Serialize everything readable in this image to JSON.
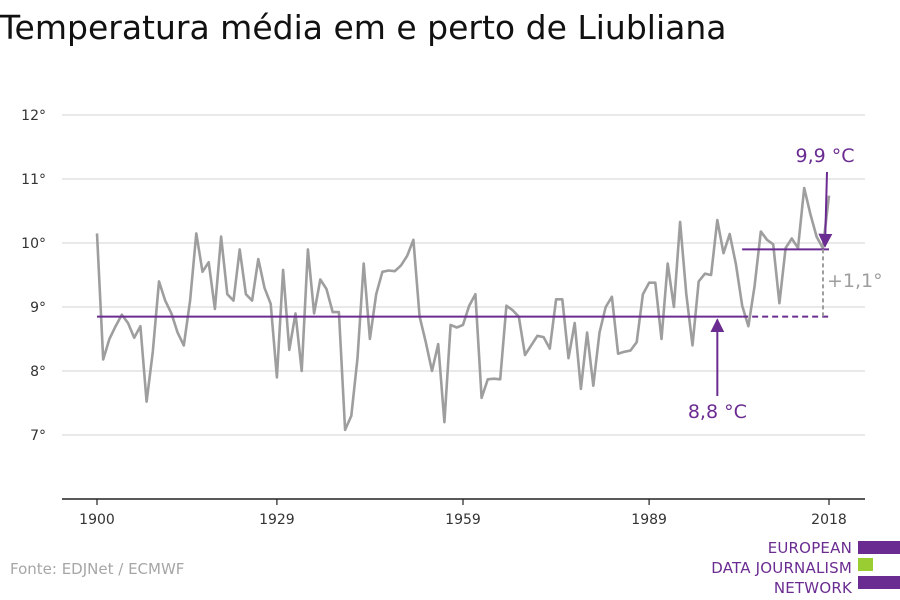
{
  "title": "Temperatura média em e perto de Liubliana",
  "source": "Fonte: EDJNet / ECMWF",
  "logo": {
    "lines": [
      "EUROPEAN",
      "DATA JOURNALISM",
      "NETWORK"
    ],
    "colors": {
      "purple": "#6b2c91",
      "green": "#9acd32"
    }
  },
  "colors": {
    "line": "#9e9e9e",
    "accent": "#6b2c91",
    "grid": "#dcdcdc",
    "axis": "#222222",
    "muted": "#9e9e9e"
  },
  "chart_data": {
    "type": "line",
    "title": "Temperatura média em e perto de Liubliana",
    "xlabel": "",
    "ylabel": "",
    "xlim": [
      1900,
      2018
    ],
    "ylim": [
      6,
      12
    ],
    "yticks": [
      7,
      8,
      9,
      10,
      11,
      12
    ],
    "ytick_labels": [
      "7°",
      "8°",
      "9°",
      "10°",
      "11°",
      "12°"
    ],
    "xticks": [
      1900,
      1929,
      1959,
      1989,
      2018
    ],
    "xtick_labels": [
      "1900",
      "1929",
      "1959",
      "1989",
      "2018"
    ],
    "grid": true,
    "series": [
      {
        "x": [
          1900,
          1901,
          1902,
          1903,
          1904,
          1905,
          1906,
          1907,
          1908,
          1909,
          1910,
          1911,
          1912,
          1913,
          1914,
          1915,
          1916,
          1917,
          1918,
          1919,
          1920,
          1921,
          1922,
          1923,
          1924,
          1925,
          1926,
          1927,
          1928,
          1929,
          1930,
          1931,
          1932,
          1933,
          1934,
          1935,
          1936,
          1937,
          1938,
          1939,
          1940,
          1941,
          1942,
          1943,
          1944,
          1945,
          1946,
          1947,
          1948,
          1949,
          1950,
          1951,
          1952,
          1953,
          1954,
          1955,
          1956,
          1957,
          1958,
          1959,
          1960,
          1961,
          1962,
          1963,
          1964,
          1965,
          1966,
          1967,
          1968,
          1969,
          1970,
          1971,
          1972,
          1973,
          1974,
          1975,
          1976,
          1977,
          1978,
          1979,
          1980,
          1981,
          1982,
          1983,
          1984,
          1985,
          1986,
          1987,
          1988,
          1989,
          1990,
          1991,
          1992,
          1993,
          1994,
          1995,
          1996,
          1997,
          1998,
          1999,
          2000,
          2001,
          2002,
          2003,
          2004,
          2005,
          2006,
          2007,
          2008,
          2009,
          2010,
          2011,
          2012,
          2013,
          2014,
          2015,
          2016,
          2017,
          2018
        ],
        "values": [
          10.15,
          8.18,
          8.5,
          8.7,
          8.88,
          8.75,
          8.52,
          8.7,
          7.52,
          8.3,
          9.4,
          9.1,
          8.9,
          8.6,
          8.4,
          9.1,
          10.15,
          9.55,
          9.7,
          8.97,
          10.1,
          9.2,
          9.1,
          9.9,
          9.2,
          9.1,
          9.75,
          9.3,
          9.05,
          7.9,
          9.58,
          8.33,
          8.9,
          8.0,
          9.9,
          8.9,
          9.43,
          9.28,
          8.92,
          8.92,
          7.08,
          7.3,
          8.2,
          9.68,
          8.5,
          9.2,
          9.55,
          9.57,
          9.56,
          9.65,
          9.8,
          10.05,
          8.85,
          8.45,
          8.0,
          8.42,
          7.2,
          8.72,
          8.68,
          8.72,
          9.02,
          9.2,
          7.58,
          7.87,
          7.88,
          7.87,
          9.02,
          8.95,
          8.85,
          8.25,
          8.4,
          8.55,
          8.53,
          8.35,
          9.12,
          9.12,
          8.2,
          8.75,
          7.72,
          8.6,
          7.77,
          8.6,
          9.0,
          9.16,
          8.27,
          8.3,
          8.32,
          8.45,
          9.2,
          9.38,
          9.38,
          8.5,
          9.68,
          9.0,
          10.33,
          9.2,
          8.4,
          9.4,
          9.52,
          9.5,
          10.36,
          9.84,
          10.14,
          9.67,
          9.02,
          8.7,
          9.33,
          10.18,
          10.05,
          9.98,
          9.06,
          9.92,
          10.07,
          9.92,
          10.86,
          10.45,
          10.1,
          9.92,
          10.74
        ]
      }
    ],
    "reference_lines": [
      {
        "label": "8,8 °C",
        "value": 8.85,
        "from": 1900,
        "to": 2018
      },
      {
        "label": "9,9 °C",
        "value": 9.9,
        "from": 2004,
        "to": 2018
      }
    ],
    "annotations": {
      "difference": "+1,1°"
    }
  }
}
